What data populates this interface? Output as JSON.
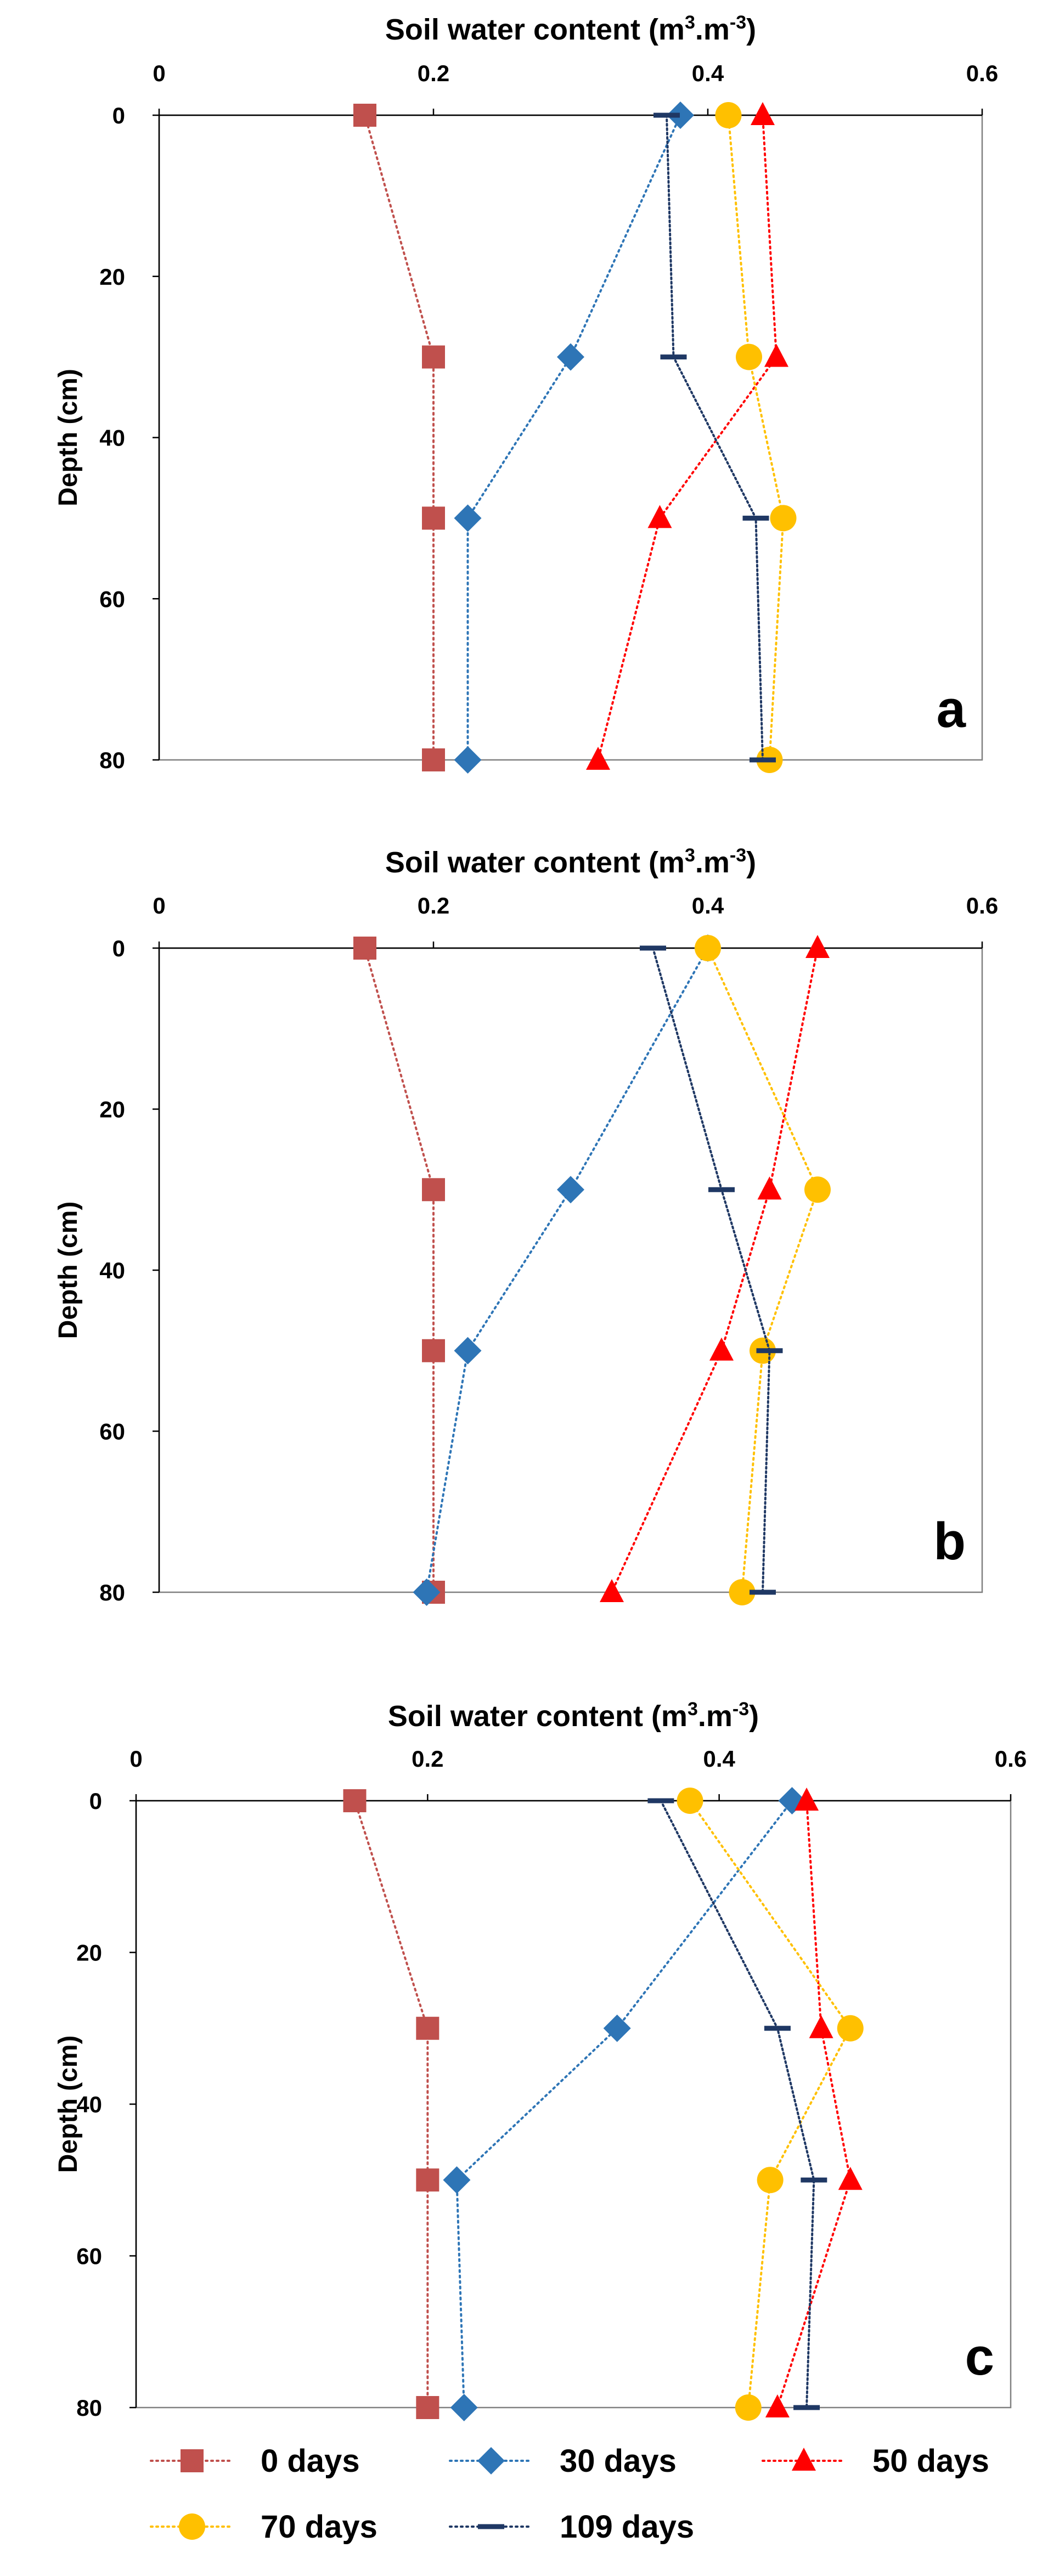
{
  "legend": {
    "items": [
      {
        "label": "0 days",
        "color": "#c0504d",
        "marker": "square"
      },
      {
        "label": "30 days",
        "color": "#2e75b6",
        "marker": "diamond"
      },
      {
        "label": "50 days",
        "color": "#ff0000",
        "marker": "triangle"
      },
      {
        "label": "70 days",
        "color": "#ffc000",
        "marker": "circle"
      },
      {
        "label": "109 days",
        "color": "#1f3864",
        "marker": "dash"
      }
    ],
    "placement": "bottom"
  },
  "chart_data": [
    {
      "type": "scatter",
      "panel_label": "a",
      "xlabel_main": "Soil water content (m",
      "xlabel_sup1": "3",
      "xlabel_mid": ".m",
      "xlabel_sup2": "-3",
      "xlabel_end": ")",
      "ylabel": "Depth (cm)",
      "xlim": [
        0,
        0.6
      ],
      "ylim": [
        0,
        80
      ],
      "x_axis_position": "top",
      "y_inverted": true,
      "grid": false,
      "xticks": [
        "0",
        "0.2",
        "0.4",
        "0.6"
      ],
      "yticks": [
        "0",
        "20",
        "40",
        "60",
        "80"
      ],
      "series": [
        {
          "name": "0 days",
          "points": [
            [
              0.15,
              0
            ],
            [
              0.2,
              30
            ],
            [
              0.2,
              50
            ],
            [
              0.2,
              80
            ]
          ]
        },
        {
          "name": "30 days",
          "points": [
            [
              0.38,
              0
            ],
            [
              0.3,
              30
            ],
            [
              0.225,
              50
            ],
            [
              0.225,
              80
            ]
          ]
        },
        {
          "name": "50 days",
          "points": [
            [
              0.44,
              0
            ],
            [
              0.45,
              30
            ],
            [
              0.365,
              50
            ],
            [
              0.32,
              80
            ]
          ]
        },
        {
          "name": "70 days",
          "points": [
            [
              0.415,
              0
            ],
            [
              0.43,
              30
            ],
            [
              0.455,
              50
            ],
            [
              0.445,
              80
            ]
          ]
        },
        {
          "name": "109 days",
          "points": [
            [
              0.37,
              0
            ],
            [
              0.375,
              30
            ],
            [
              0.435,
              50
            ],
            [
              0.44,
              80
            ]
          ]
        }
      ]
    },
    {
      "type": "scatter",
      "panel_label": "b",
      "xlabel_main": "Soil water content (m",
      "xlabel_sup1": "3",
      "xlabel_mid": ".m",
      "xlabel_sup2": "-3",
      "xlabel_end": ")",
      "ylabel": "Depth (cm)",
      "xlim": [
        0,
        0.6
      ],
      "ylim": [
        0,
        80
      ],
      "x_axis_position": "top",
      "y_inverted": true,
      "grid": false,
      "xticks": [
        "0",
        "0.2",
        "0.4",
        "0.6"
      ],
      "yticks": [
        "0",
        "20",
        "40",
        "60",
        "80"
      ],
      "series": [
        {
          "name": "0 days",
          "points": [
            [
              0.15,
              0
            ],
            [
              0.2,
              30
            ],
            [
              0.2,
              50
            ],
            [
              0.2,
              80
            ]
          ]
        },
        {
          "name": "30 days",
          "points": [
            [
              0.4,
              0
            ],
            [
              0.3,
              30
            ],
            [
              0.225,
              50
            ],
            [
              0.195,
              80
            ]
          ]
        },
        {
          "name": "50 days",
          "points": [
            [
              0.48,
              0
            ],
            [
              0.445,
              30
            ],
            [
              0.41,
              50
            ],
            [
              0.33,
              80
            ]
          ]
        },
        {
          "name": "70 days",
          "points": [
            [
              0.4,
              0
            ],
            [
              0.48,
              30
            ],
            [
              0.44,
              50
            ],
            [
              0.425,
              80
            ]
          ]
        },
        {
          "name": "109 days",
          "points": [
            [
              0.36,
              0
            ],
            [
              0.41,
              30
            ],
            [
              0.445,
              50
            ],
            [
              0.44,
              80
            ]
          ]
        }
      ]
    },
    {
      "type": "scatter",
      "panel_label": "c",
      "xlabel_main": "Soil water content (m",
      "xlabel_sup1": "3",
      "xlabel_mid": ".m",
      "xlabel_sup2": "-3",
      "xlabel_end": ")",
      "ylabel": "Depth (cm)",
      "xlim": [
        0,
        0.6
      ],
      "ylim": [
        0,
        80
      ],
      "x_axis_position": "top",
      "y_inverted": true,
      "grid": false,
      "xticks": [
        "0",
        "0.2",
        "0.4",
        "0.6"
      ],
      "yticks": [
        "0",
        "20",
        "40",
        "60",
        "80"
      ],
      "series": [
        {
          "name": "0 days",
          "points": [
            [
              0.15,
              0
            ],
            [
              0.2,
              30
            ],
            [
              0.2,
              50
            ],
            [
              0.2,
              80
            ]
          ]
        },
        {
          "name": "30 days",
          "points": [
            [
              0.45,
              0
            ],
            [
              0.33,
              30
            ],
            [
              0.22,
              50
            ],
            [
              0.225,
              80
            ]
          ]
        },
        {
          "name": "50 days",
          "points": [
            [
              0.46,
              0
            ],
            [
              0.47,
              30
            ],
            [
              0.49,
              50
            ],
            [
              0.44,
              80
            ]
          ]
        },
        {
          "name": "70 days",
          "points": [
            [
              0.38,
              0
            ],
            [
              0.49,
              30
            ],
            [
              0.435,
              50
            ],
            [
              0.42,
              80
            ]
          ]
        },
        {
          "name": "109 days",
          "points": [
            [
              0.36,
              0
            ],
            [
              0.44,
              30
            ],
            [
              0.465,
              50
            ],
            [
              0.46,
              80
            ]
          ]
        }
      ]
    }
  ]
}
